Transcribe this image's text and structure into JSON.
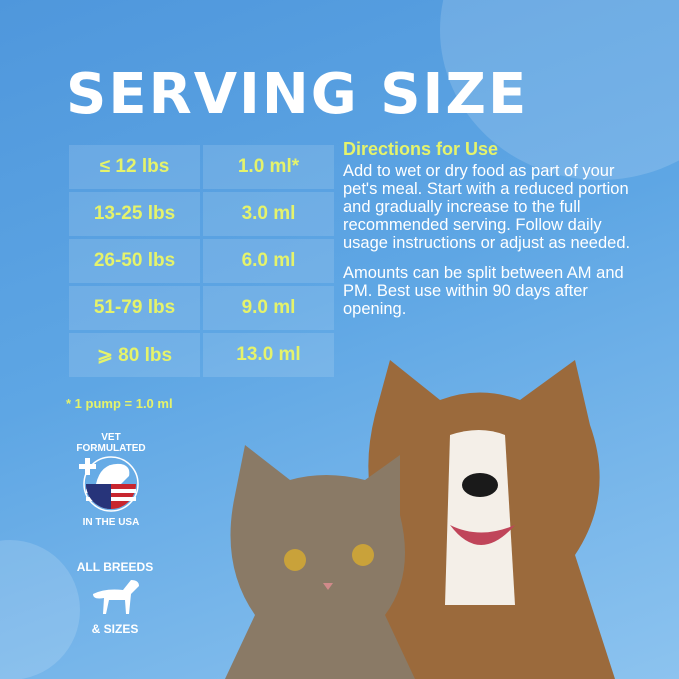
{
  "title": "SERVING SIZE",
  "table": {
    "rows": [
      {
        "weight": "≤ 12 lbs",
        "amount": "1.0 ml*"
      },
      {
        "weight": "13-25 lbs",
        "amount": "3.0 ml"
      },
      {
        "weight": "26-50 lbs",
        "amount": "6.0 ml"
      },
      {
        "weight": "51-79 lbs",
        "amount": "9.0 ml"
      },
      {
        "weight": "⩾ 80 lbs",
        "amount": "13.0 ml"
      }
    ]
  },
  "footnote": "* 1 pump = 1.0 ml",
  "directions": {
    "heading": "Directions for Use",
    "paragraph1": "Add to wet or dry food as part of your pet's meal. Start with a reduced portion and gradually increase to the full recommended serving. Follow daily usage instructions or adjust as needed.",
    "paragraph2": "Amounts can be split between AM and PM. Best use within 90 days after opening."
  },
  "badges": {
    "vet_top": "VET FORMULATED",
    "vet_bottom": "IN THE USA",
    "breeds_top": "ALL BREEDS",
    "breeds_bottom": "& SIZES"
  },
  "colors": {
    "accent": "#e5f36b",
    "background": "#5ea6e4"
  }
}
